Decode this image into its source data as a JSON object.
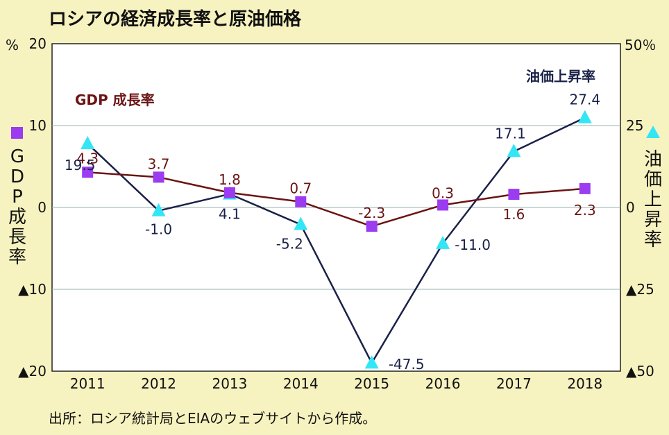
{
  "title": "ロシアの経済成長率と原油価格",
  "source": "出所：ロシア統計局とEIAのウェブサイトから作成。",
  "colors": {
    "background": "#f7f3c0",
    "plot_bg": "#ffffff",
    "gdp_line": "#6b1414",
    "gdp_marker": "#9b3cf0",
    "oil_line": "#1a2148",
    "oil_marker": "#33e6f5",
    "grid": "#9ab0b0"
  },
  "left_axis": {
    "unit": "%",
    "label_chars": [
      "G",
      "D",
      "P",
      "成",
      "長",
      "率"
    ],
    "marker_icon": "purple-square-icon",
    "ticks": [
      {
        "value": 20,
        "label": "20"
      },
      {
        "value": 10,
        "label": "10"
      },
      {
        "value": 0,
        "label": "0"
      },
      {
        "value": -10,
        "label": "▲10"
      },
      {
        "value": -20,
        "label": "▲20"
      }
    ]
  },
  "right_axis": {
    "unit": "50％",
    "label_chars": [
      "油",
      "価",
      "上",
      "昇",
      "率"
    ],
    "marker_icon": "cyan-triangle-icon",
    "ticks": [
      {
        "value": 25,
        "label": "25"
      },
      {
        "value": 0,
        "label": "0"
      },
      {
        "value": -25,
        "label": "▲25"
      },
      {
        "value": -50,
        "label": "▲50"
      }
    ]
  },
  "chart_data": {
    "type": "line",
    "title": "ロシアの経済成長率と原油価格",
    "categories": [
      "2011",
      "2012",
      "2013",
      "2014",
      "2015",
      "2016",
      "2017",
      "2018"
    ],
    "grid": true,
    "series": [
      {
        "name": "GDP 成長率",
        "axis": "left",
        "ylim": [
          -20,
          20
        ],
        "values": [
          4.3,
          3.7,
          1.8,
          0.7,
          -2.3,
          0.3,
          1.6,
          2.3
        ],
        "labels": [
          "4.3",
          "3.7",
          "1.8",
          "0.7",
          "-2.3",
          "0.3",
          "1.6",
          "2.3"
        ]
      },
      {
        "name": "油価上昇率",
        "axis": "right",
        "ylim": [
          -50,
          50
        ],
        "values": [
          19.5,
          -1.0,
          4.1,
          -5.2,
          -47.5,
          -11.0,
          17.1,
          27.4
        ],
        "labels": [
          "19.5",
          "-1.0",
          "4.1",
          "-5.2",
          "-47.5",
          "-11.0",
          "17.1",
          "27.4"
        ]
      }
    ]
  }
}
